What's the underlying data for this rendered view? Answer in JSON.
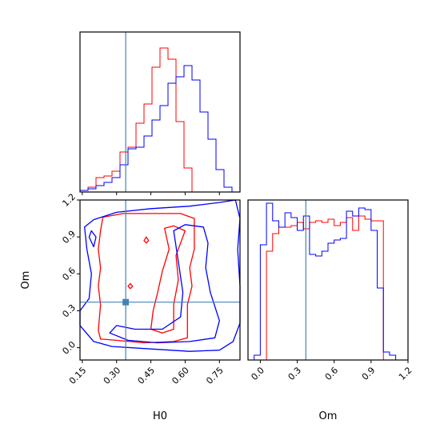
{
  "chart_data": {
    "type": "corner",
    "parameters": [
      "H0",
      "Om"
    ],
    "truth": {
      "H0": 0.34,
      "Om": 0.37
    },
    "colors": {
      "series_a": "#ff0000",
      "series_b": "#0000ff",
      "truth": "#4682b4"
    },
    "panels": [
      {
        "id": "H0-marginal",
        "type": "histogram",
        "xlim": [
          0.14,
          0.84
        ],
        "bin_edges": [
          0.14,
          0.175,
          0.21,
          0.245,
          0.28,
          0.315,
          0.35,
          0.385,
          0.42,
          0.455,
          0.49,
          0.525,
          0.56,
          0.595,
          0.63,
          0.665,
          0.7,
          0.735,
          0.77,
          0.805,
          0.84
        ],
        "series": [
          {
            "color": "red",
            "counts": [
              0.01,
              0.03,
              0.09,
              0.1,
              0.13,
              0.25,
              0.28,
              0.43,
              0.55,
              0.78,
              0.9,
              0.83,
              0.44,
              0.15,
              0.0,
              0.0,
              0.0,
              0.0,
              0.0,
              0.0
            ]
          },
          {
            "color": "blue",
            "counts": [
              0.01,
              0.02,
              0.04,
              0.06,
              0.09,
              0.17,
              0.27,
              0.28,
              0.35,
              0.45,
              0.54,
              0.68,
              0.72,
              0.79,
              0.7,
              0.5,
              0.33,
              0.14,
              0.03,
              0.0
            ]
          }
        ]
      },
      {
        "id": "H0-Om-joint",
        "type": "contour",
        "xlim": [
          0.14,
          0.84
        ],
        "ylim": [
          -0.1,
          1.2
        ],
        "xlabel": "H0",
        "ylabel": "Om",
        "xticks": [
          "0.15",
          "0.30",
          "0.45",
          "0.60",
          "0.75"
        ],
        "yticks": [
          "0.0",
          "0.3",
          "0.6",
          "0.9",
          "1.2"
        ],
        "contours": [
          {
            "color": "red",
            "level": "outer",
            "points": [
              [
                0.22,
                0.14
              ],
              [
                0.23,
                0.07
              ],
              [
                0.3,
                0.06
              ],
              [
                0.42,
                0.04
              ],
              [
                0.55,
                0.05
              ],
              [
                0.61,
                0.08
              ],
              [
                0.61,
                0.35
              ],
              [
                0.63,
                0.5
              ],
              [
                0.62,
                0.65
              ],
              [
                0.64,
                0.8
              ],
              [
                0.64,
                1.05
              ],
              [
                0.58,
                1.09
              ],
              [
                0.45,
                1.09
              ],
              [
                0.33,
                1.09
              ],
              [
                0.24,
                1.06
              ],
              [
                0.23,
                0.95
              ],
              [
                0.22,
                0.8
              ],
              [
                0.23,
                0.65
              ],
              [
                0.22,
                0.5
              ],
              [
                0.23,
                0.35
              ],
              [
                0.22,
                0.14
              ]
            ]
          },
          {
            "color": "red",
            "level": "inner",
            "points": [
              [
                0.45,
                0.15
              ],
              [
                0.5,
                0.12
              ],
              [
                0.55,
                0.15
              ],
              [
                0.55,
                0.35
              ],
              [
                0.57,
                0.55
              ],
              [
                0.56,
                0.75
              ],
              [
                0.6,
                0.95
              ],
              [
                0.55,
                0.99
              ],
              [
                0.51,
                0.97
              ],
              [
                0.53,
                0.8
              ],
              [
                0.5,
                0.62
              ],
              [
                0.48,
                0.45
              ],
              [
                0.46,
                0.3
              ],
              [
                0.45,
                0.15
              ]
            ]
          },
          {
            "color": "blue",
            "level": "outer",
            "points": [
              [
                0.14,
                0.18
              ],
              [
                0.2,
                0.05
              ],
              [
                0.28,
                0.01
              ],
              [
                0.45,
                -0.01
              ],
              [
                0.62,
                -0.03
              ],
              [
                0.75,
                -0.02
              ],
              [
                0.81,
                0.05
              ],
              [
                0.84,
                0.2
              ],
              [
                0.84,
                0.5
              ],
              [
                0.83,
                0.8
              ],
              [
                0.84,
                1.05
              ],
              [
                0.82,
                1.2
              ],
              [
                0.75,
                1.18
              ],
              [
                0.62,
                1.15
              ],
              [
                0.45,
                1.13
              ],
              [
                0.3,
                1.1
              ],
              [
                0.2,
                1.04
              ],
              [
                0.16,
                0.98
              ],
              [
                0.17,
                0.8
              ],
              [
                0.19,
                0.6
              ],
              [
                0.18,
                0.4
              ],
              [
                0.14,
                0.3
              ],
              [
                0.14,
                0.18
              ]
            ]
          },
          {
            "color": "blue",
            "level": "inner",
            "points": [
              [
                0.27,
                0.12
              ],
              [
                0.35,
                0.06
              ],
              [
                0.48,
                0.04
              ],
              [
                0.62,
                0.05
              ],
              [
                0.73,
                0.08
              ],
              [
                0.75,
                0.22
              ],
              [
                0.71,
                0.45
              ],
              [
                0.69,
                0.65
              ],
              [
                0.7,
                0.85
              ],
              [
                0.68,
                0.98
              ],
              [
                0.6,
                1.0
              ],
              [
                0.55,
                0.95
              ],
              [
                0.57,
                0.7
              ],
              [
                0.59,
                0.45
              ],
              [
                0.58,
                0.25
              ],
              [
                0.5,
                0.15
              ],
              [
                0.38,
                0.15
              ],
              [
                0.3,
                0.18
              ],
              [
                0.27,
                0.12
              ]
            ]
          },
          {
            "color": "blue",
            "level": "outer",
            "points": [
              [
                0.19,
                0.95
              ],
              [
                0.21,
                0.9
              ],
              [
                0.2,
                0.82
              ],
              [
                0.18,
                0.9
              ],
              [
                0.19,
                0.95
              ]
            ]
          },
          {
            "color": "red",
            "level": "inner",
            "points": [
              [
                0.43,
                0.9
              ],
              [
                0.44,
                0.87
              ],
              [
                0.43,
                0.85
              ],
              [
                0.42,
                0.87
              ],
              [
                0.43,
                0.9
              ]
            ]
          },
          {
            "color": "red",
            "level": "inner",
            "points": [
              [
                0.36,
                0.52
              ],
              [
                0.37,
                0.5
              ],
              [
                0.36,
                0.48
              ],
              [
                0.35,
                0.5
              ],
              [
                0.36,
                0.52
              ]
            ]
          }
        ]
      },
      {
        "id": "Om-marginal",
        "type": "histogram",
        "xlim": [
          -0.1,
          1.2
        ],
        "xlabel": "Om",
        "xticks": [
          "0.0",
          "0.3",
          "0.6",
          "0.9",
          "1.2"
        ],
        "bin_edges": [
          -0.05,
          0.0,
          0.05,
          0.1,
          0.15,
          0.2,
          0.25,
          0.3,
          0.35,
          0.4,
          0.45,
          0.5,
          0.55,
          0.6,
          0.65,
          0.7,
          0.75,
          0.8,
          0.85,
          0.9,
          0.95,
          1.0,
          1.05,
          1.1,
          1.15
        ],
        "series": [
          {
            "color": "red",
            "counts": [
              0.0,
              0.0,
              0.68,
              0.79,
              0.83,
              0.83,
              0.84,
              0.86,
              0.82,
              0.86,
              0.87,
              0.86,
              0.88,
              0.84,
              0.86,
              0.89,
              0.81,
              0.9,
              0.88,
              0.87,
              0.87,
              0.0,
              0.0,
              0.0
            ]
          },
          {
            "color": "blue",
            "counts": [
              0.03,
              0.72,
              0.98,
              0.87,
              0.83,
              0.92,
              0.89,
              0.81,
              0.9,
              0.66,
              0.65,
              0.68,
              0.73,
              0.75,
              0.76,
              0.93,
              0.9,
              0.95,
              0.94,
              0.81,
              0.45,
              0.05,
              0.03,
              0.0
            ]
          }
        ]
      }
    ]
  }
}
